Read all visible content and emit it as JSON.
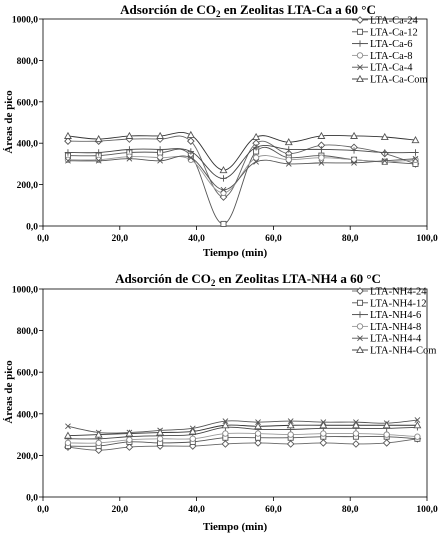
{
  "chart_data": [
    {
      "type": "line",
      "title": {
        "pre": "Adsorción de CO",
        "sub": "2",
        "post": " en Zeolitas LTA-Ca a 60 °C"
      },
      "xlabel": "Tiempo (min)",
      "ylabel": "Áreas de pico",
      "xlim": [
        0,
        100
      ],
      "ylim": [
        0,
        1000
      ],
      "xticks": [
        "0,0",
        "20,0",
        "40,0",
        "60,0",
        "80,0",
        "100,0"
      ],
      "yticks": [
        "0,0",
        "200,0",
        "400,0",
        "600,0",
        "800,0",
        "1000,0"
      ],
      "grid": false,
      "legend_position": "top-right",
      "x": [
        6.5,
        14.5,
        22.5,
        30.5,
        38.5,
        47,
        55.5,
        64,
        72.5,
        81,
        89,
        97
      ],
      "series": [
        {
          "name": "LTA-Ca-24",
          "marker": "diamond",
          "values": [
            410,
            410,
            420,
            420,
            410,
            140,
            400,
            350,
            390,
            380,
            350,
            300
          ]
        },
        {
          "name": "LTA-Ca-12",
          "marker": "square",
          "values": [
            340,
            340,
            355,
            355,
            340,
            10,
            360,
            330,
            340,
            320,
            310,
            300
          ]
        },
        {
          "name": "LTA-Ca-6",
          "marker": "plus",
          "values": [
            355,
            355,
            370,
            370,
            360,
            230,
            380,
            370,
            370,
            365,
            355,
            355
          ]
        },
        {
          "name": "LTA-Ca-8",
          "marker": "circle",
          "values": [
            320,
            320,
            335,
            330,
            320,
            160,
            330,
            320,
            330,
            320,
            310,
            320
          ]
        },
        {
          "name": "LTA-Ca-4",
          "marker": "x",
          "values": [
            315,
            315,
            325,
            315,
            330,
            175,
            310,
            300,
            305,
            305,
            315,
            325
          ]
        },
        {
          "name": "LTA-Ca-Com",
          "marker": "triangle",
          "values": [
            435,
            420,
            435,
            435,
            440,
            270,
            430,
            405,
            435,
            435,
            430,
            415
          ]
        }
      ]
    },
    {
      "type": "line",
      "title": {
        "pre": "Adsorción de CO",
        "sub": "2",
        "post": " en Zeolitas LTA-NH4 a 60 °C"
      },
      "xlabel": "Tiempo (min)",
      "ylabel": "Áreas de pico",
      "xlim": [
        0,
        100
      ],
      "ylim": [
        0,
        1000
      ],
      "xticks": [
        "0,0",
        "20,0",
        "40,0",
        "60,0",
        "80,0",
        "100,0"
      ],
      "yticks": [
        "0,0",
        "200,0",
        "400,0",
        "600,0",
        "800,0",
        "1000,0"
      ],
      "grid": false,
      "legend_position": "top-right",
      "x": [
        6.5,
        14.5,
        22.5,
        30.5,
        39,
        47.5,
        56,
        64.5,
        73,
        81.5,
        89.5,
        97.5
      ],
      "series": [
        {
          "name": "LTA-NH4-24",
          "marker": "diamond",
          "values": [
            240,
            225,
            240,
            245,
            245,
            255,
            260,
            255,
            260,
            255,
            260,
            280
          ]
        },
        {
          "name": "LTA-NH4-12",
          "marker": "square",
          "values": [
            245,
            245,
            265,
            260,
            265,
            285,
            285,
            285,
            290,
            290,
            290,
            280
          ]
        },
        {
          "name": "LTA-NH4-6",
          "marker": "plus",
          "values": [
            280,
            280,
            290,
            295,
            300,
            335,
            325,
            325,
            330,
            330,
            330,
            335
          ]
        },
        {
          "name": "LTA-NH4-8",
          "marker": "circle",
          "values": [
            260,
            260,
            275,
            280,
            280,
            305,
            305,
            300,
            305,
            305,
            300,
            290
          ]
        },
        {
          "name": "LTA-NH4-4",
          "marker": "x",
          "values": [
            340,
            310,
            310,
            320,
            330,
            365,
            360,
            365,
            360,
            360,
            355,
            370
          ]
        },
        {
          "name": "LTA-NH4-Com",
          "marker": "triangle",
          "values": [
            295,
            300,
            305,
            310,
            315,
            345,
            340,
            345,
            345,
            345,
            345,
            345
          ]
        }
      ]
    }
  ]
}
